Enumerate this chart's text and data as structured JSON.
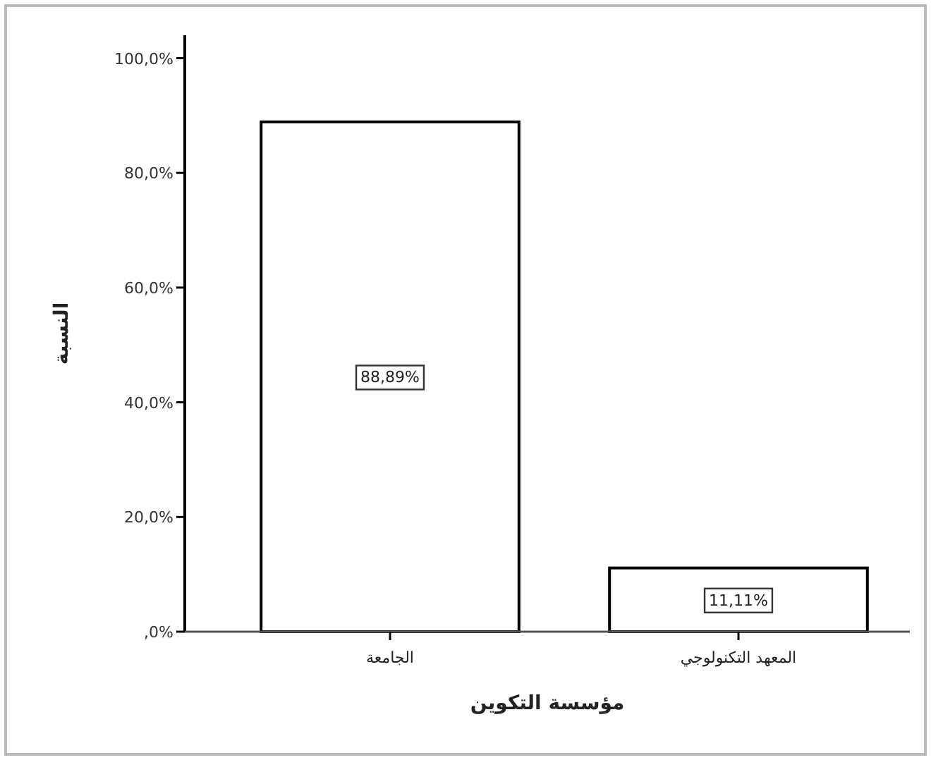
{
  "chart_data": {
    "type": "bar",
    "xlabel": "مؤسسة التكوين",
    "ylabel": "النسبة",
    "categories": [
      "الجامعة",
      "المعهد التكنولوجي"
    ],
    "values": [
      88.89,
      11.11
    ],
    "value_labels": [
      "88,89%",
      "11,11%"
    ],
    "color": "#ffffff",
    "ylim": [
      0,
      104
    ],
    "yticks": [
      {
        "value": 0,
        "label": ",0%"
      },
      {
        "value": 20,
        "label": "20,0%"
      },
      {
        "value": 40,
        "label": "40,0%"
      },
      {
        "value": 60,
        "label": "60,0%"
      },
      {
        "value": 80,
        "label": "80,0%"
      },
      {
        "value": 100,
        "label": "100,0%"
      }
    ],
    "data_labels": false
  }
}
